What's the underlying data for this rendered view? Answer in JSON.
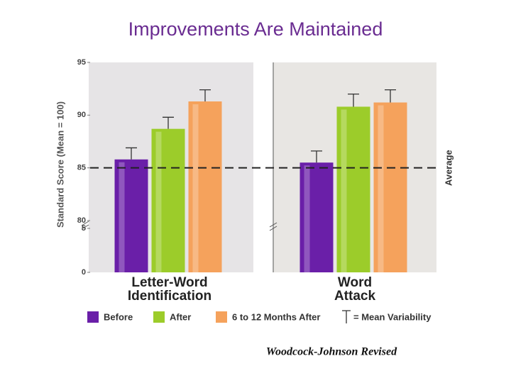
{
  "chart_data": {
    "type": "bar",
    "title": "Improvements Are Maintained",
    "y_label": "Standard Score (Mean = 100)",
    "categories": [
      "Letter-Word Identification",
      "Word Attack"
    ],
    "series": [
      {
        "name": "Before",
        "color": "#6a1fa8",
        "values": [
          85.8,
          85.5
        ],
        "errors": [
          1.1,
          1.1
        ]
      },
      {
        "name": "After",
        "color": "#9ccc2a",
        "values": [
          88.7,
          90.8
        ],
        "errors": [
          1.1,
          1.2
        ]
      },
      {
        "name": "6 to 12 Months After",
        "color": "#f5a25c",
        "values": [
          91.3,
          91.2
        ],
        "errors": [
          1.1,
          1.2
        ]
      }
    ],
    "error_legend": "= Mean Variability",
    "ylim": [
      0,
      95
    ],
    "axis_break": [
      5,
      80
    ],
    "yticks": [
      95,
      90,
      85,
      80,
      5,
      0
    ],
    "reference_line": {
      "value": 85,
      "label": "Average"
    },
    "source": "Woodcock-Johnson Revised"
  }
}
